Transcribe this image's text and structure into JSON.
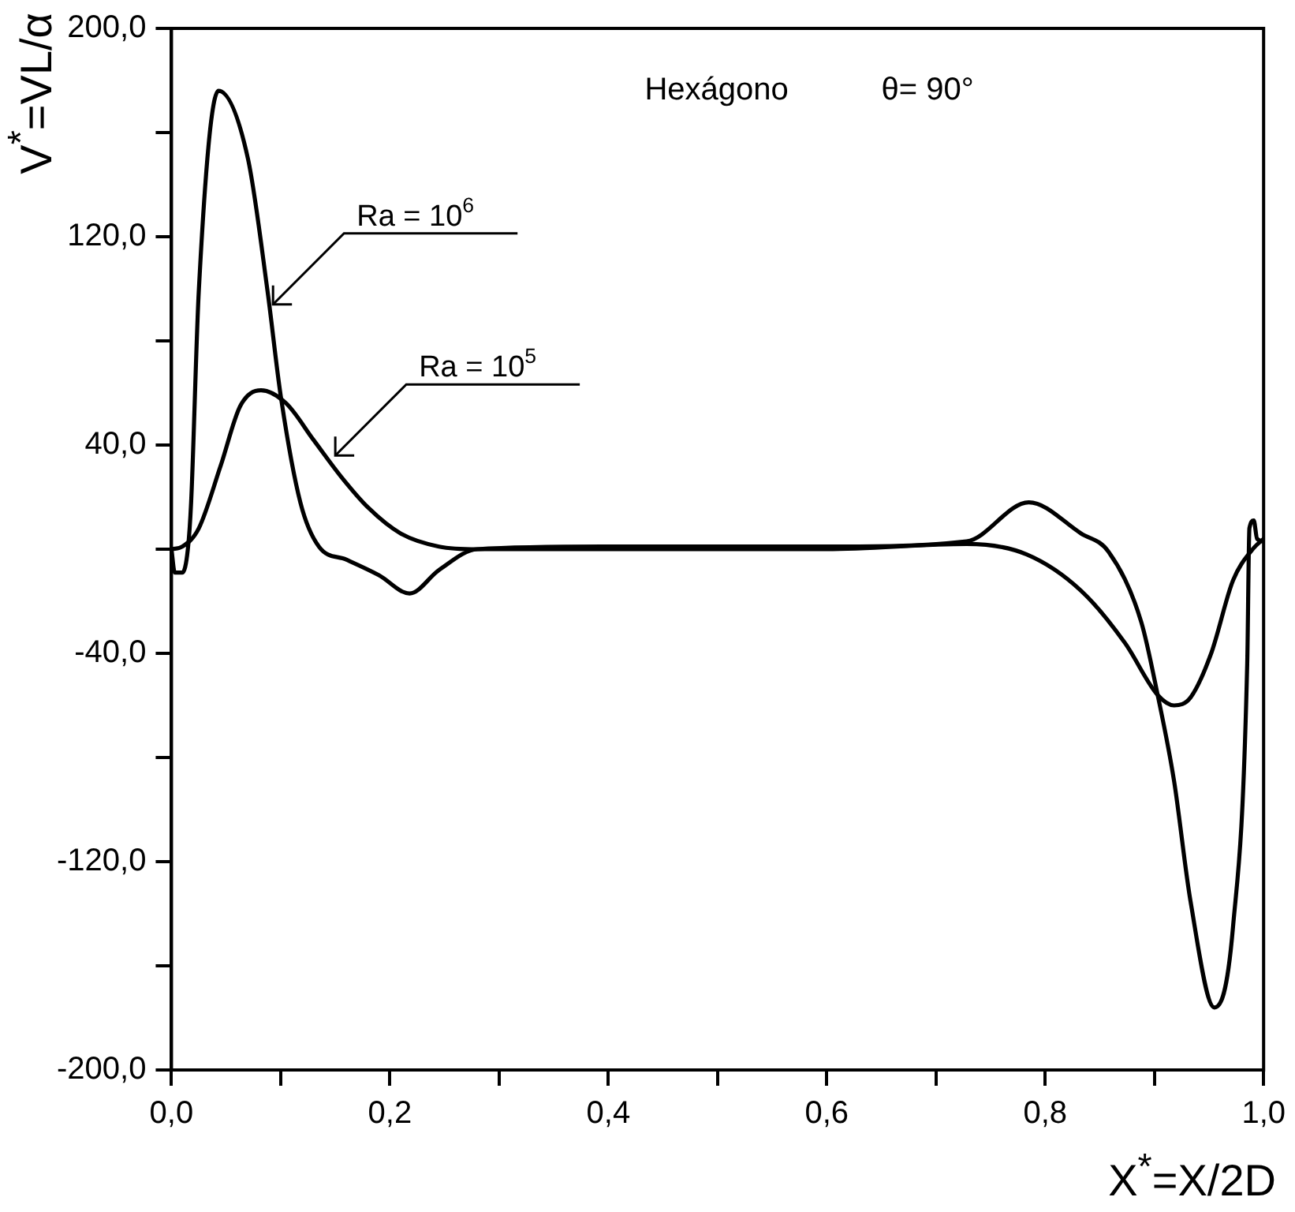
{
  "chart_data": {
    "type": "line",
    "xlabel": "X$^{*}$=X/2D",
    "ylabel": "V$^{*}$=VL/α",
    "annotations": [
      "Hexágono",
      "θ= 90°",
      {
        "text": "Ra = 10$^{6}$",
        "x": 0.093,
        "y": 94
      },
      {
        "text": "Ra = 10$^{5}$",
        "x": 0.15,
        "y": 36
      }
    ],
    "series": [
      {
        "color": "#000000",
        "x": [
          0,
          0.003,
          0.01,
          0.015,
          0.018,
          0.025,
          0.043,
          0.07,
          0.088,
          0.1,
          0.118,
          0.135,
          0.16,
          0.19,
          0.218,
          0.245,
          0.28,
          0.4,
          0.6,
          0.728,
          0.785,
          0.833,
          0.858,
          0.888,
          0.903,
          0.918,
          0.933,
          0.955,
          0.972,
          0.985,
          0.987,
          0.991,
          0.994,
          1.0
        ],
        "values": [
          0,
          -9,
          -9,
          0,
          18,
          99,
          176,
          150,
          99,
          59,
          18,
          1,
          -4,
          -10,
          -17,
          -8,
          0,
          1,
          1,
          3,
          18,
          6,
          -1,
          -28,
          -56,
          -89,
          -135,
          -176,
          -145,
          -44,
          8,
          11,
          4,
          3
        ]
      },
      {
        "color": "#000000",
        "x": [
          0,
          0.01,
          0.025,
          0.045,
          0.063,
          0.082,
          0.105,
          0.13,
          0.155,
          0.18,
          0.21,
          0.245,
          0.28,
          0.4,
          0.6,
          0.728,
          0.783,
          0.833,
          0.873,
          0.903,
          0.918,
          0.933,
          0.952,
          0.972,
          0.99,
          1.0
        ],
        "values": [
          0,
          1,
          8,
          32,
          55,
          61,
          56,
          42,
          28,
          16,
          6,
          1,
          0,
          0,
          0,
          2,
          -2,
          -16,
          -36,
          -56,
          -60,
          -57,
          -40,
          -12,
          0,
          4
        ]
      }
    ],
    "xlim": [
      0,
      1
    ],
    "ylim": [
      -200,
      200
    ],
    "xticks": [
      {
        "value": 0,
        "label": "0,0"
      },
      {
        "value": 0.1,
        "label": null
      },
      {
        "value": 0.2,
        "label": "0,2"
      },
      {
        "value": 0.3,
        "label": null
      },
      {
        "value": 0.4,
        "label": "0,4"
      },
      {
        "value": 0.5,
        "label": null
      },
      {
        "value": 0.6,
        "label": "0,6"
      },
      {
        "value": 0.7,
        "label": null
      },
      {
        "value": 0.8,
        "label": "0,8"
      },
      {
        "value": 0.9,
        "label": null
      },
      {
        "value": 1,
        "label": "1,0"
      }
    ],
    "yticks": [
      {
        "value": -200,
        "label": "-200,0"
      },
      {
        "value": -160,
        "label": null
      },
      {
        "value": -120,
        "label": "-120,0"
      },
      {
        "value": -80,
        "label": null
      },
      {
        "value": -40,
        "label": "-40,0"
      },
      {
        "value": 0,
        "label": null
      },
      {
        "value": 40,
        "label": "40,0"
      },
      {
        "value": 80,
        "label": null
      },
      {
        "value": 120,
        "label": "120,0"
      },
      {
        "value": 160,
        "label": null
      },
      {
        "value": 200,
        "label": "200,0"
      }
    ],
    "legend": false,
    "marker": "none",
    "line_style": "solid"
  }
}
